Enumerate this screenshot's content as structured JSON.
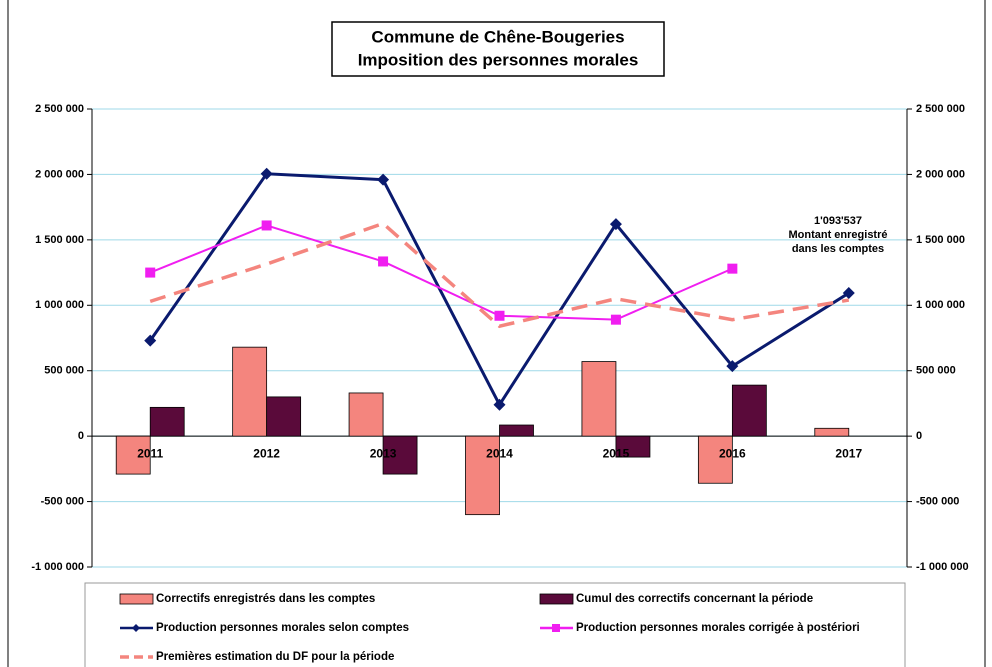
{
  "chart_data": {
    "type": "bar_line",
    "title": "Commune de Chêne-Bougeries",
    "subtitle": "Imposition des personnes morales",
    "categories": [
      "2011",
      "2012",
      "2013",
      "2014",
      "2015",
      "2016",
      "2017"
    ],
    "series": [
      {
        "name": "Correctifs enregistrés dans les comptes",
        "kind": "bar",
        "color": "#f4857e",
        "values": [
          -290000,
          680000,
          330000,
          -600000,
          570000,
          -360000,
          60000
        ]
      },
      {
        "name": "Cumul des correctifs concernant la période",
        "kind": "bar",
        "color": "#5a0a3a",
        "values": [
          220000,
          300000,
          -290000,
          85000,
          -160000,
          390000,
          null
        ]
      },
      {
        "name": "Production personnes morales selon comptes",
        "kind": "line",
        "marker": "diamond",
        "color": "#0a1a6e",
        "values": [
          730000,
          2005000,
          1960000,
          240000,
          1620000,
          535000,
          1093537
        ]
      },
      {
        "name": "Production personnes morales corrigée à postériori",
        "kind": "line",
        "marker": "square",
        "color": "#f01ef0",
        "values": [
          1250000,
          1610000,
          1335000,
          920000,
          890000,
          1280000,
          null
        ]
      },
      {
        "name": "Premières estimation du DF pour la période",
        "kind": "line",
        "dashed": true,
        "color": "#f4857e",
        "values": [
          1030000,
          1315000,
          1625000,
          840000,
          1050000,
          890000,
          1040000
        ]
      }
    ],
    "annotation": [
      "1'093'537",
      "Montant enregistré",
      "dans les comptes"
    ],
    "ylim": [
      -1000000,
      2500000
    ],
    "yticks": [
      {
        "value": -1000000,
        "label": "-1 000 000"
      },
      {
        "value": -500000,
        "label": "-500 000"
      },
      0,
      {
        "value": 500000,
        "label": "500 000"
      },
      {
        "value": 1000000,
        "label": "1 000 000"
      },
      {
        "value": 1500000,
        "label": "1 500 000"
      },
      {
        "value": 2000000,
        "label": "2 000 000"
      },
      {
        "value": 2500000,
        "label": "2 500 000"
      }
    ],
    "y2lim": [
      -1000000,
      2500000
    ],
    "y2ticks": [
      {
        "value": -1000000,
        "label": "-1 000 000"
      },
      {
        "value": -500000,
        "label": "-500 000"
      },
      0,
      {
        "value": 500000,
        "label": "500 000"
      },
      {
        "value": 1000000,
        "label": "1 000 000"
      },
      {
        "value": 1500000,
        "label": "1 500 000"
      },
      {
        "value": 2000000,
        "label": "2 000 000"
      },
      {
        "value": 2500000,
        "label": "2 500 000"
      }
    ],
    "grid": true,
    "legend": "bottom"
  }
}
